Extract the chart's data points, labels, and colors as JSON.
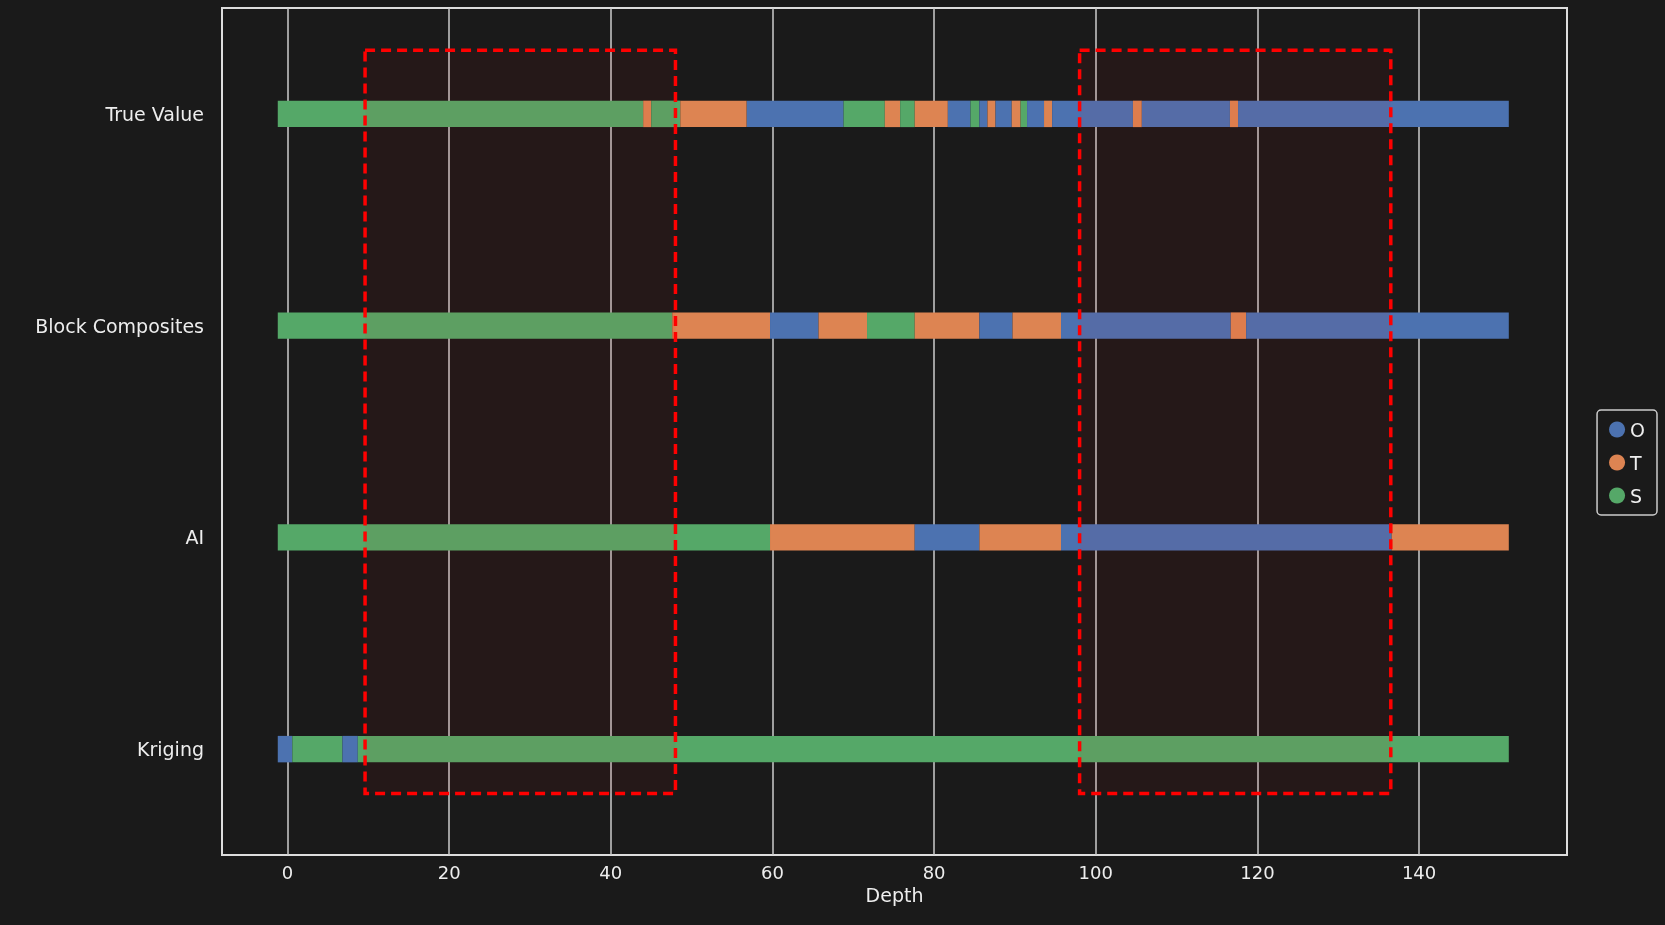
{
  "chart_data": {
    "type": "bar",
    "orientation": "horizontal",
    "xlabel": "Depth",
    "categories": [
      "True Value",
      "Block Composites",
      "AI",
      "Kriging"
    ],
    "xlim": [
      -8.1,
      158.3
    ],
    "xticks": [
      0,
      20,
      40,
      60,
      80,
      100,
      120,
      140
    ],
    "grid": "x",
    "legend": "right",
    "series": [
      {
        "name": "O",
        "color": "#4c72b0",
        "values": [
          12.0,
          null,
          null,
          null
        ],
        "base": [
          56.8,
          null,
          null,
          null
        ]
      },
      {
        "name": "T",
        "color": "#dd8452",
        "values": [
          1.0,
          null,
          null,
          null
        ],
        "base": [
          44.0,
          null,
          null,
          null
        ]
      },
      {
        "name": "S",
        "color": "#55a868",
        "values": [
          45.2,
          null,
          null,
          null
        ],
        "base": [
          -1.2,
          null,
          null,
          null
        ]
      },
      {
        "color": "#55a868",
        "values": [
          3.6,
          null,
          null,
          null
        ],
        "base": [
          45.0,
          null,
          null,
          null
        ]
      },
      {
        "color": "#dd8452",
        "values": [
          8.2,
          null,
          null,
          null
        ],
        "base": [
          48.6,
          null,
          null,
          null
        ]
      },
      {
        "color": "#55a868",
        "values": [
          5.1,
          null,
          null,
          null
        ],
        "base": [
          68.8,
          null,
          null,
          null
        ]
      },
      {
        "color": "#dd8452",
        "values": [
          1.9,
          null,
          null,
          null
        ],
        "base": [
          73.9,
          null,
          null,
          null
        ]
      },
      {
        "color": "#55a868",
        "values": [
          1.8,
          null,
          null,
          null
        ],
        "base": [
          75.8,
          null,
          null,
          null
        ]
      },
      {
        "color": "#dd8452",
        "values": [
          4.1,
          null,
          null,
          null
        ],
        "base": [
          77.6,
          null,
          null,
          null
        ]
      },
      {
        "color": "#4c72b0",
        "values": [
          2.8,
          null,
          null,
          null
        ],
        "base": [
          81.7,
          null,
          null,
          null
        ]
      },
      {
        "color": "#55a868",
        "values": [
          1.1,
          null,
          null,
          null
        ],
        "base": [
          84.5,
          null,
          null,
          null
        ]
      },
      {
        "color": "#4c72b0",
        "values": [
          1.0,
          null,
          null,
          null
        ],
        "base": [
          85.6,
          null,
          null,
          null
        ]
      },
      {
        "color": "#dd8452",
        "values": [
          1.0,
          null,
          null,
          null
        ],
        "base": [
          86.6,
          null,
          null,
          null
        ]
      },
      {
        "color": "#4c72b0",
        "values": [
          2.0,
          null,
          null,
          null
        ],
        "base": [
          87.6,
          null,
          null,
          null
        ]
      },
      {
        "color": "#dd8452",
        "values": [
          1.1,
          null,
          null,
          null
        ],
        "base": [
          89.6,
          null,
          null,
          null
        ]
      },
      {
        "color": "#55a868",
        "values": [
          0.8,
          null,
          null,
          null
        ],
        "base": [
          90.7,
          null,
          null,
          null
        ]
      },
      {
        "color": "#4c72b0",
        "values": [
          2.1,
          null,
          null,
          null
        ],
        "base": [
          91.5,
          null,
          null,
          null
        ]
      },
      {
        "color": "#dd8452",
        "values": [
          1.0,
          null,
          null,
          null
        ],
        "base": [
          93.6,
          null,
          null,
          null
        ]
      },
      {
        "color": "#4c72b0",
        "values": [
          10.0,
          null,
          null,
          null
        ],
        "base": [
          94.6,
          null,
          null,
          null
        ]
      },
      {
        "color": "#dd8452",
        "values": [
          1.1,
          null,
          null,
          null
        ],
        "base": [
          104.6,
          null,
          null,
          null
        ]
      },
      {
        "color": "#4c72b0",
        "values": [
          10.9,
          null,
          null,
          null
        ],
        "base": [
          105.7,
          null,
          null,
          null
        ]
      },
      {
        "color": "#dd8452",
        "values": [
          1.0,
          null,
          null,
          null
        ],
        "base": [
          116.6,
          null,
          null,
          null
        ]
      },
      {
        "color": "#4c72b0",
        "values": [
          33.5,
          null,
          null,
          null
        ],
        "base": [
          117.6,
          null,
          null,
          null
        ]
      },
      {
        "color": "#55a868",
        "values": [
          null,
          48.8,
          null,
          null
        ],
        "base": [
          null,
          -1.2,
          null,
          null
        ]
      },
      {
        "color": "#dd8452",
        "values": [
          null,
          12.1,
          null,
          null
        ],
        "base": [
          null,
          47.6,
          null,
          null
        ]
      },
      {
        "color": "#4c72b0",
        "values": [
          null,
          6.0,
          null,
          null
        ],
        "base": [
          null,
          59.7,
          null,
          null
        ]
      },
      {
        "color": "#dd8452",
        "values": [
          null,
          6.0,
          null,
          null
        ],
        "base": [
          null,
          65.7,
          null,
          null
        ]
      },
      {
        "color": "#55a868",
        "values": [
          null,
          5.9,
          null,
          null
        ],
        "base": [
          null,
          71.7,
          null,
          null
        ]
      },
      {
        "color": "#dd8452",
        "values": [
          null,
          8.0,
          null,
          null
        ],
        "base": [
          null,
          77.6,
          null,
          null
        ]
      },
      {
        "color": "#4c72b0",
        "values": [
          null,
          4.1,
          null,
          null
        ],
        "base": [
          null,
          85.6,
          null,
          null
        ]
      },
      {
        "color": "#dd8452",
        "values": [
          null,
          6.0,
          null,
          null
        ],
        "base": [
          null,
          89.7,
          null,
          null
        ]
      },
      {
        "color": "#4c72b0",
        "values": [
          null,
          21.0,
          null,
          null
        ],
        "base": [
          null,
          95.7,
          null,
          null
        ]
      },
      {
        "color": "#dd8452",
        "values": [
          null,
          1.9,
          null,
          null
        ],
        "base": [
          null,
          116.7,
          null,
          null
        ]
      },
      {
        "color": "#4c72b0",
        "values": [
          null,
          32.5,
          null,
          null
        ],
        "base": [
          null,
          118.6,
          null,
          null
        ]
      },
      {
        "color": "#55a868",
        "values": [
          null,
          null,
          60.9,
          null
        ],
        "base": [
          null,
          null,
          -1.2,
          null
        ]
      },
      {
        "color": "#dd8452",
        "values": [
          null,
          null,
          17.9,
          null
        ],
        "base": [
          null,
          null,
          59.7,
          null
        ]
      },
      {
        "color": "#4c72b0",
        "values": [
          null,
          null,
          8.0,
          null
        ],
        "base": [
          null,
          null,
          77.6,
          null
        ]
      },
      {
        "color": "#dd8452",
        "values": [
          null,
          null,
          10.1,
          null
        ],
        "base": [
          null,
          null,
          85.6,
          null
        ]
      },
      {
        "color": "#4c72b0",
        "values": [
          null,
          null,
          40.9,
          null
        ],
        "base": [
          null,
          null,
          95.7,
          null
        ]
      },
      {
        "color": "#dd8452",
        "values": [
          null,
          null,
          14.5,
          null
        ],
        "base": [
          null,
          null,
          136.6,
          null
        ]
      },
      {
        "color": "#4c72b0",
        "values": [
          null,
          null,
          null,
          1.8
        ],
        "base": [
          null,
          null,
          null,
          -1.2
        ]
      },
      {
        "color": "#55a868",
        "values": [
          null,
          null,
          null,
          6.2
        ],
        "base": [
          null,
          null,
          null,
          0.6
        ]
      },
      {
        "color": "#4c72b0",
        "values": [
          null,
          null,
          null,
          1.9
        ],
        "base": [
          null,
          null,
          null,
          6.8
        ]
      },
      {
        "color": "#55a868",
        "values": [
          null,
          null,
          null,
          142.4
        ],
        "base": [
          null,
          null,
          null,
          8.7
        ]
      }
    ],
    "bands": [
      {
        "axis": "x",
        "from": 9.6,
        "to": 48,
        "color": "#ff0000"
      },
      {
        "axis": "x",
        "from": 98,
        "to": 136.5,
        "color": "#ff0000"
      }
    ]
  }
}
